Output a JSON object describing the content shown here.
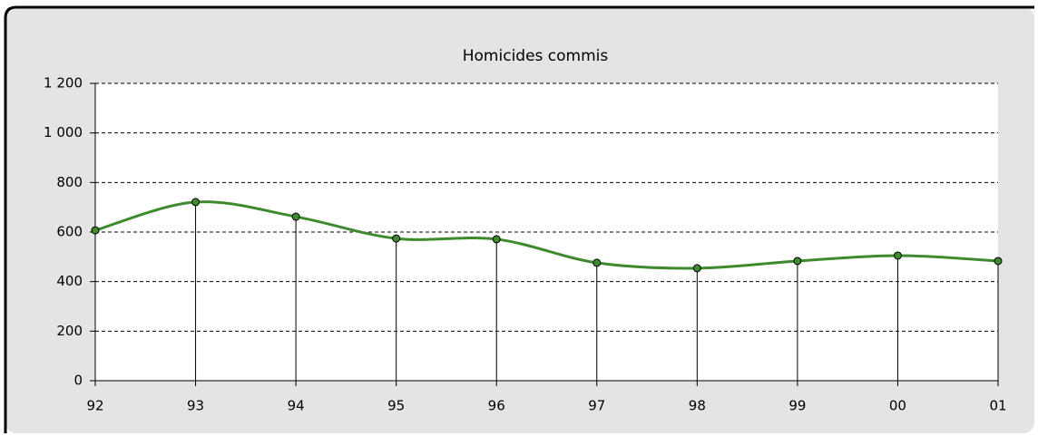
{
  "chart_data": {
    "type": "line",
    "title": "Homicides commis",
    "categories": [
      "92",
      "93",
      "94",
      "95",
      "96",
      "97",
      "98",
      "99",
      "00",
      "01"
    ],
    "series": [
      {
        "name": "Homicides commis",
        "color": "#3f8a2e",
        "values": [
          607,
          721,
          662,
          574,
          571,
          476,
          454,
          483,
          505,
          483
        ]
      }
    ],
    "ylim": [
      0,
      1200
    ],
    "yticks": [
      0,
      200,
      400,
      600,
      800,
      {
        "value": 1000,
        "label": "1 000"
      },
      {
        "value": 1200,
        "label": "1 200"
      }
    ],
    "grid": true,
    "smooth": true,
    "drop_lines": true
  }
}
